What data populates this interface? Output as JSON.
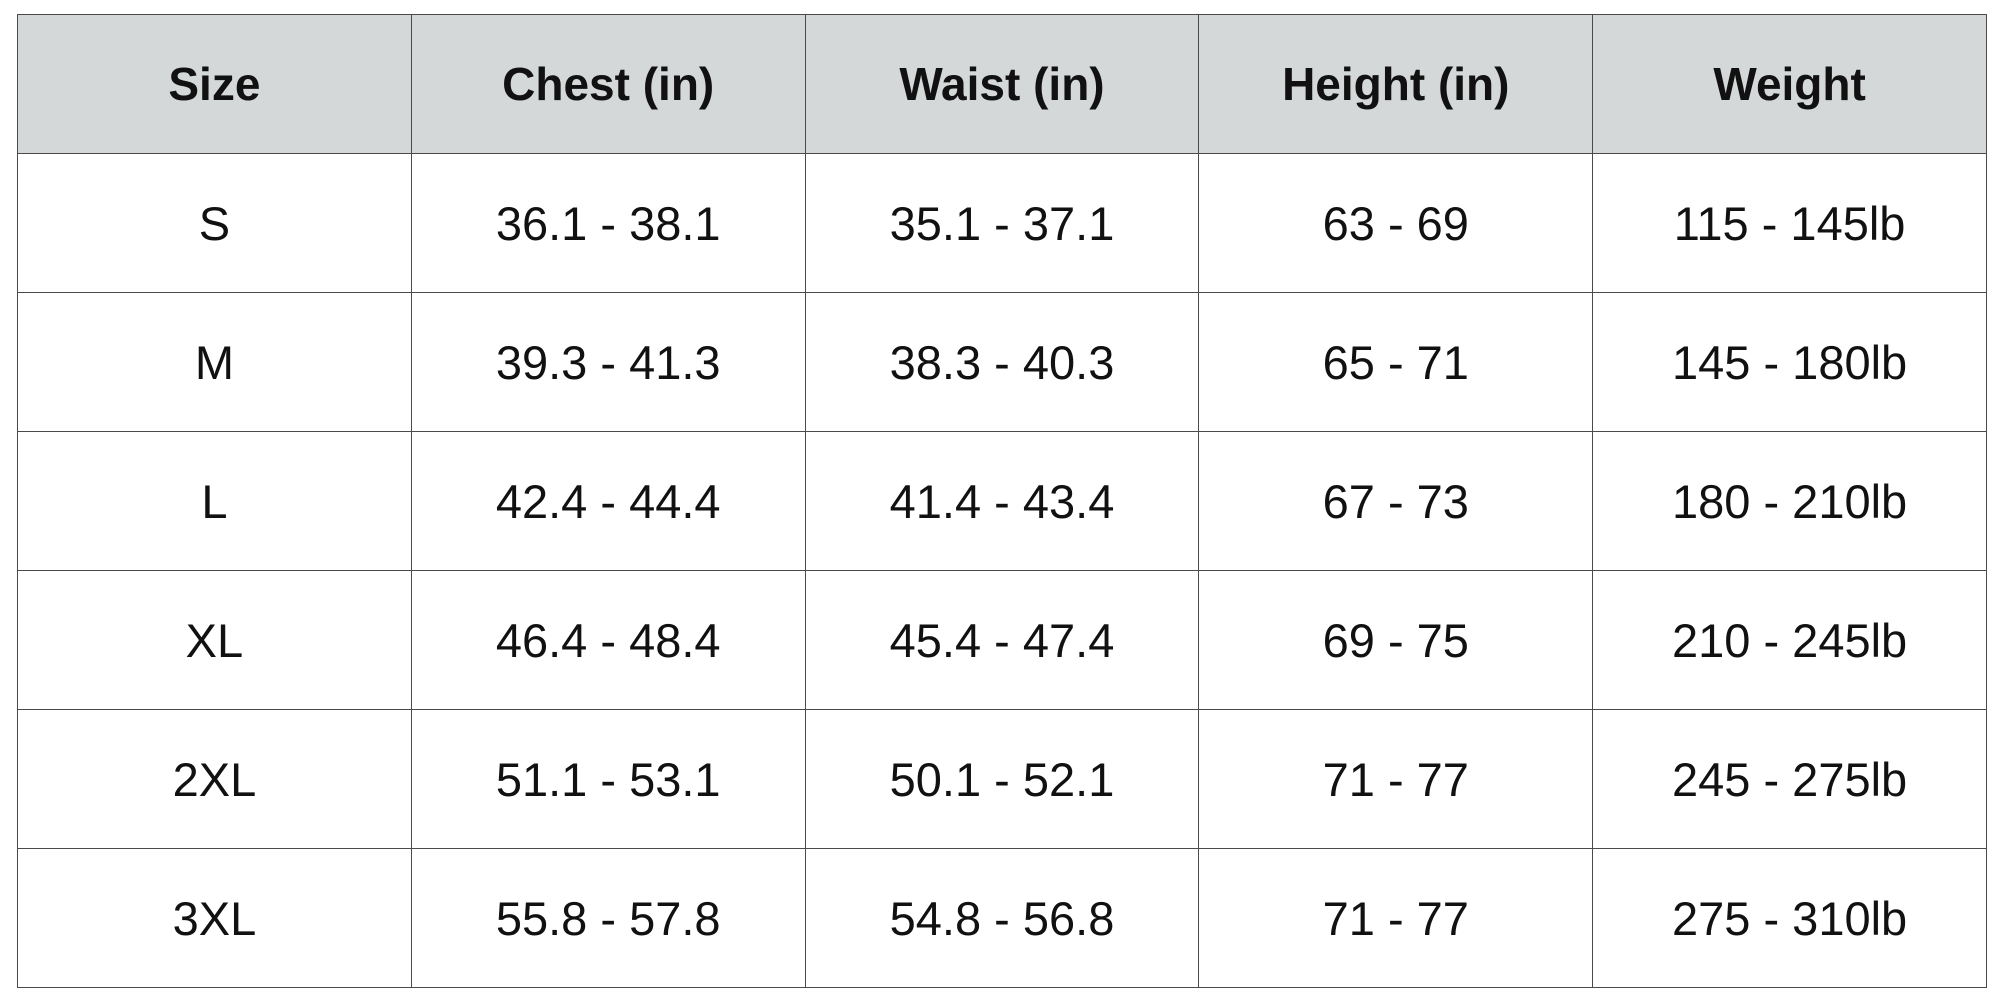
{
  "table": {
    "header": [
      "Size",
      "Chest (in)",
      "Waist (in)",
      "Height (in)",
      "Weight"
    ],
    "rows": [
      [
        "S",
        "36.1 - 38.1",
        "35.1 - 37.1",
        "63 - 69",
        "115 - 145lb"
      ],
      [
        "M",
        "39.3 - 41.3",
        "38.3 - 40.3",
        "65 - 71",
        "145 - 180lb"
      ],
      [
        "L",
        "42.4 - 44.4",
        "41.4 - 43.4",
        "67 - 73",
        "180 - 210lb"
      ],
      [
        "XL",
        "46.4 - 48.4",
        "45.4 - 47.4",
        "69 - 75",
        "210 - 245lb"
      ],
      [
        "2XL",
        "51.1 - 53.1",
        "50.1 - 52.1",
        "71 - 77",
        "245 - 275lb"
      ],
      [
        "3XL",
        "55.8 - 57.8",
        "54.8 - 56.8",
        "71 - 77",
        "275 - 310lb"
      ]
    ]
  }
}
